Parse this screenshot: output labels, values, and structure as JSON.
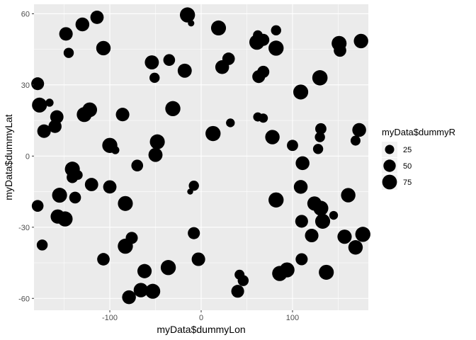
{
  "chart_data": {
    "type": "scatter",
    "title": "",
    "xlabel": "myData$dummyLon",
    "ylabel": "myData$dummyLat",
    "xlim": [
      -183,
      183
    ],
    "ylim": [
      -65,
      64
    ],
    "x_ticks": [
      -100,
      0,
      100
    ],
    "y_ticks": [
      -60,
      -30,
      0,
      30,
      60
    ],
    "grid": true,
    "background": "#ebebeb",
    "grid_color": "#ffffff",
    "point_color": "#000000",
    "size_variable": "myData$dummyR",
    "legend": {
      "title": "myData$dummyR",
      "placement": "right",
      "entries": [
        25,
        50,
        75
      ]
    },
    "points": [
      {
        "x": -15,
        "y": 59.5,
        "r": 80
      },
      {
        "x": -11,
        "y": 56,
        "r": 10
      },
      {
        "x": -114,
        "y": 58.5,
        "r": 60
      },
      {
        "x": -130,
        "y": 55.5,
        "r": 65
      },
      {
        "x": -148,
        "y": 51.5,
        "r": 62
      },
      {
        "x": -145,
        "y": 43.5,
        "r": 32
      },
      {
        "x": -107,
        "y": 45.5,
        "r": 72
      },
      {
        "x": 19,
        "y": 54,
        "r": 78
      },
      {
        "x": 62,
        "y": 51,
        "r": 28
      },
      {
        "x": 68,
        "y": 49,
        "r": 48
      },
      {
        "x": 82,
        "y": 53,
        "r": 32
      },
      {
        "x": 61,
        "y": 48,
        "r": 80
      },
      {
        "x": 82,
        "y": 45.5,
        "r": 80
      },
      {
        "x": 151,
        "y": 47.5,
        "r": 78
      },
      {
        "x": 152,
        "y": 44.5,
        "r": 52
      },
      {
        "x": 175,
        "y": 48.5,
        "r": 72
      },
      {
        "x": -54,
        "y": 39.5,
        "r": 68
      },
      {
        "x": -35,
        "y": 40.5,
        "r": 45
      },
      {
        "x": -18,
        "y": 36,
        "r": 68
      },
      {
        "x": -51,
        "y": 33,
        "r": 32
      },
      {
        "x": 30,
        "y": 41,
        "r": 52
      },
      {
        "x": 23,
        "y": 37.5,
        "r": 65
      },
      {
        "x": 68,
        "y": 35.5,
        "r": 48
      },
      {
        "x": 63,
        "y": 33.5,
        "r": 55
      },
      {
        "x": 130,
        "y": 33,
        "r": 82
      },
      {
        "x": 109,
        "y": 27,
        "r": 78
      },
      {
        "x": -179,
        "y": 30.5,
        "r": 55
      },
      {
        "x": -166,
        "y": 22.5,
        "r": 18
      },
      {
        "x": -177,
        "y": 21.5,
        "r": 78
      },
      {
        "x": -158,
        "y": 16.5,
        "r": 60
      },
      {
        "x": -172,
        "y": 10.5,
        "r": 62
      },
      {
        "x": -160,
        "y": 12.5,
        "r": 58
      },
      {
        "x": -122,
        "y": 19.5,
        "r": 75
      },
      {
        "x": -128,
        "y": 17.5,
        "r": 78
      },
      {
        "x": -86,
        "y": 17.5,
        "r": 62
      },
      {
        "x": -31,
        "y": 20,
        "r": 80
      },
      {
        "x": 32,
        "y": 14,
        "r": 22
      },
      {
        "x": 62,
        "y": 16.5,
        "r": 25
      },
      {
        "x": 68,
        "y": 16,
        "r": 25
      },
      {
        "x": 13,
        "y": 9.5,
        "r": 80
      },
      {
        "x": 100,
        "y": 4.5,
        "r": 40
      },
      {
        "x": 78,
        "y": 8,
        "r": 72
      },
      {
        "x": 131,
        "y": 11.5,
        "r": 40
      },
      {
        "x": 130,
        "y": 8,
        "r": 32
      },
      {
        "x": 173,
        "y": 11,
        "r": 65
      },
      {
        "x": 169,
        "y": 6.5,
        "r": 30
      },
      {
        "x": 128,
        "y": 3,
        "r": 32
      },
      {
        "x": -100,
        "y": 4.5,
        "r": 80
      },
      {
        "x": -94,
        "y": 2.5,
        "r": 18
      },
      {
        "x": -48,
        "y": 6,
        "r": 78
      },
      {
        "x": -50,
        "y": 0.5,
        "r": 68
      },
      {
        "x": -141,
        "y": -5.5,
        "r": 78
      },
      {
        "x": -141,
        "y": -9,
        "r": 42
      },
      {
        "x": -135,
        "y": -8,
        "r": 28
      },
      {
        "x": -70,
        "y": -4,
        "r": 45
      },
      {
        "x": -100,
        "y": -13,
        "r": 60
      },
      {
        "x": -120,
        "y": -12,
        "r": 60
      },
      {
        "x": -155,
        "y": -16.5,
        "r": 78
      },
      {
        "x": -138,
        "y": -17.5,
        "r": 45
      },
      {
        "x": -179,
        "y": -21,
        "r": 45
      },
      {
        "x": -83,
        "y": -20,
        "r": 78
      },
      {
        "x": -8,
        "y": -12.5,
        "r": 32
      },
      {
        "x": -12,
        "y": -15,
        "r": 8
      },
      {
        "x": -157,
        "y": -25.5,
        "r": 70
      },
      {
        "x": -149,
        "y": -26.5,
        "r": 80
      },
      {
        "x": -174,
        "y": -37.5,
        "r": 38
      },
      {
        "x": 82,
        "y": -18.5,
        "r": 80
      },
      {
        "x": 109,
        "y": -13,
        "r": 65
      },
      {
        "x": 111,
        "y": -3,
        "r": 65
      },
      {
        "x": 124,
        "y": -20,
        "r": 70
      },
      {
        "x": 131,
        "y": -22,
        "r": 78
      },
      {
        "x": 145,
        "y": -25,
        "r": 22
      },
      {
        "x": 161,
        "y": -16.5,
        "r": 72
      },
      {
        "x": 110,
        "y": -27.5,
        "r": 55
      },
      {
        "x": 133,
        "y": -27.5,
        "r": 78
      },
      {
        "x": 121,
        "y": -33.5,
        "r": 62
      },
      {
        "x": 157,
        "y": -34,
        "r": 70
      },
      {
        "x": 177,
        "y": -33,
        "r": 80
      },
      {
        "x": 169,
        "y": -38.5,
        "r": 72
      },
      {
        "x": -76,
        "y": -34.5,
        "r": 48
      },
      {
        "x": -83,
        "y": -38,
        "r": 80
      },
      {
        "x": -107,
        "y": -43.5,
        "r": 52
      },
      {
        "x": -8,
        "y": -32.5,
        "r": 48
      },
      {
        "x": -3,
        "y": -43.5,
        "r": 62
      },
      {
        "x": -62,
        "y": -48.5,
        "r": 70
      },
      {
        "x": -36,
        "y": -47,
        "r": 80
      },
      {
        "x": 42,
        "y": -50,
        "r": 30
      },
      {
        "x": 46,
        "y": -52.5,
        "r": 38
      },
      {
        "x": 40,
        "y": -57,
        "r": 55
      },
      {
        "x": -79,
        "y": -59.5,
        "r": 65
      },
      {
        "x": -66,
        "y": -56.5,
        "r": 72
      },
      {
        "x": -53,
        "y": -57,
        "r": 78
      },
      {
        "x": 86,
        "y": -49.5,
        "r": 80
      },
      {
        "x": 94,
        "y": -48,
        "r": 78
      },
      {
        "x": 110,
        "y": -43.5,
        "r": 48
      },
      {
        "x": 137,
        "y": -49,
        "r": 78
      }
    ]
  }
}
